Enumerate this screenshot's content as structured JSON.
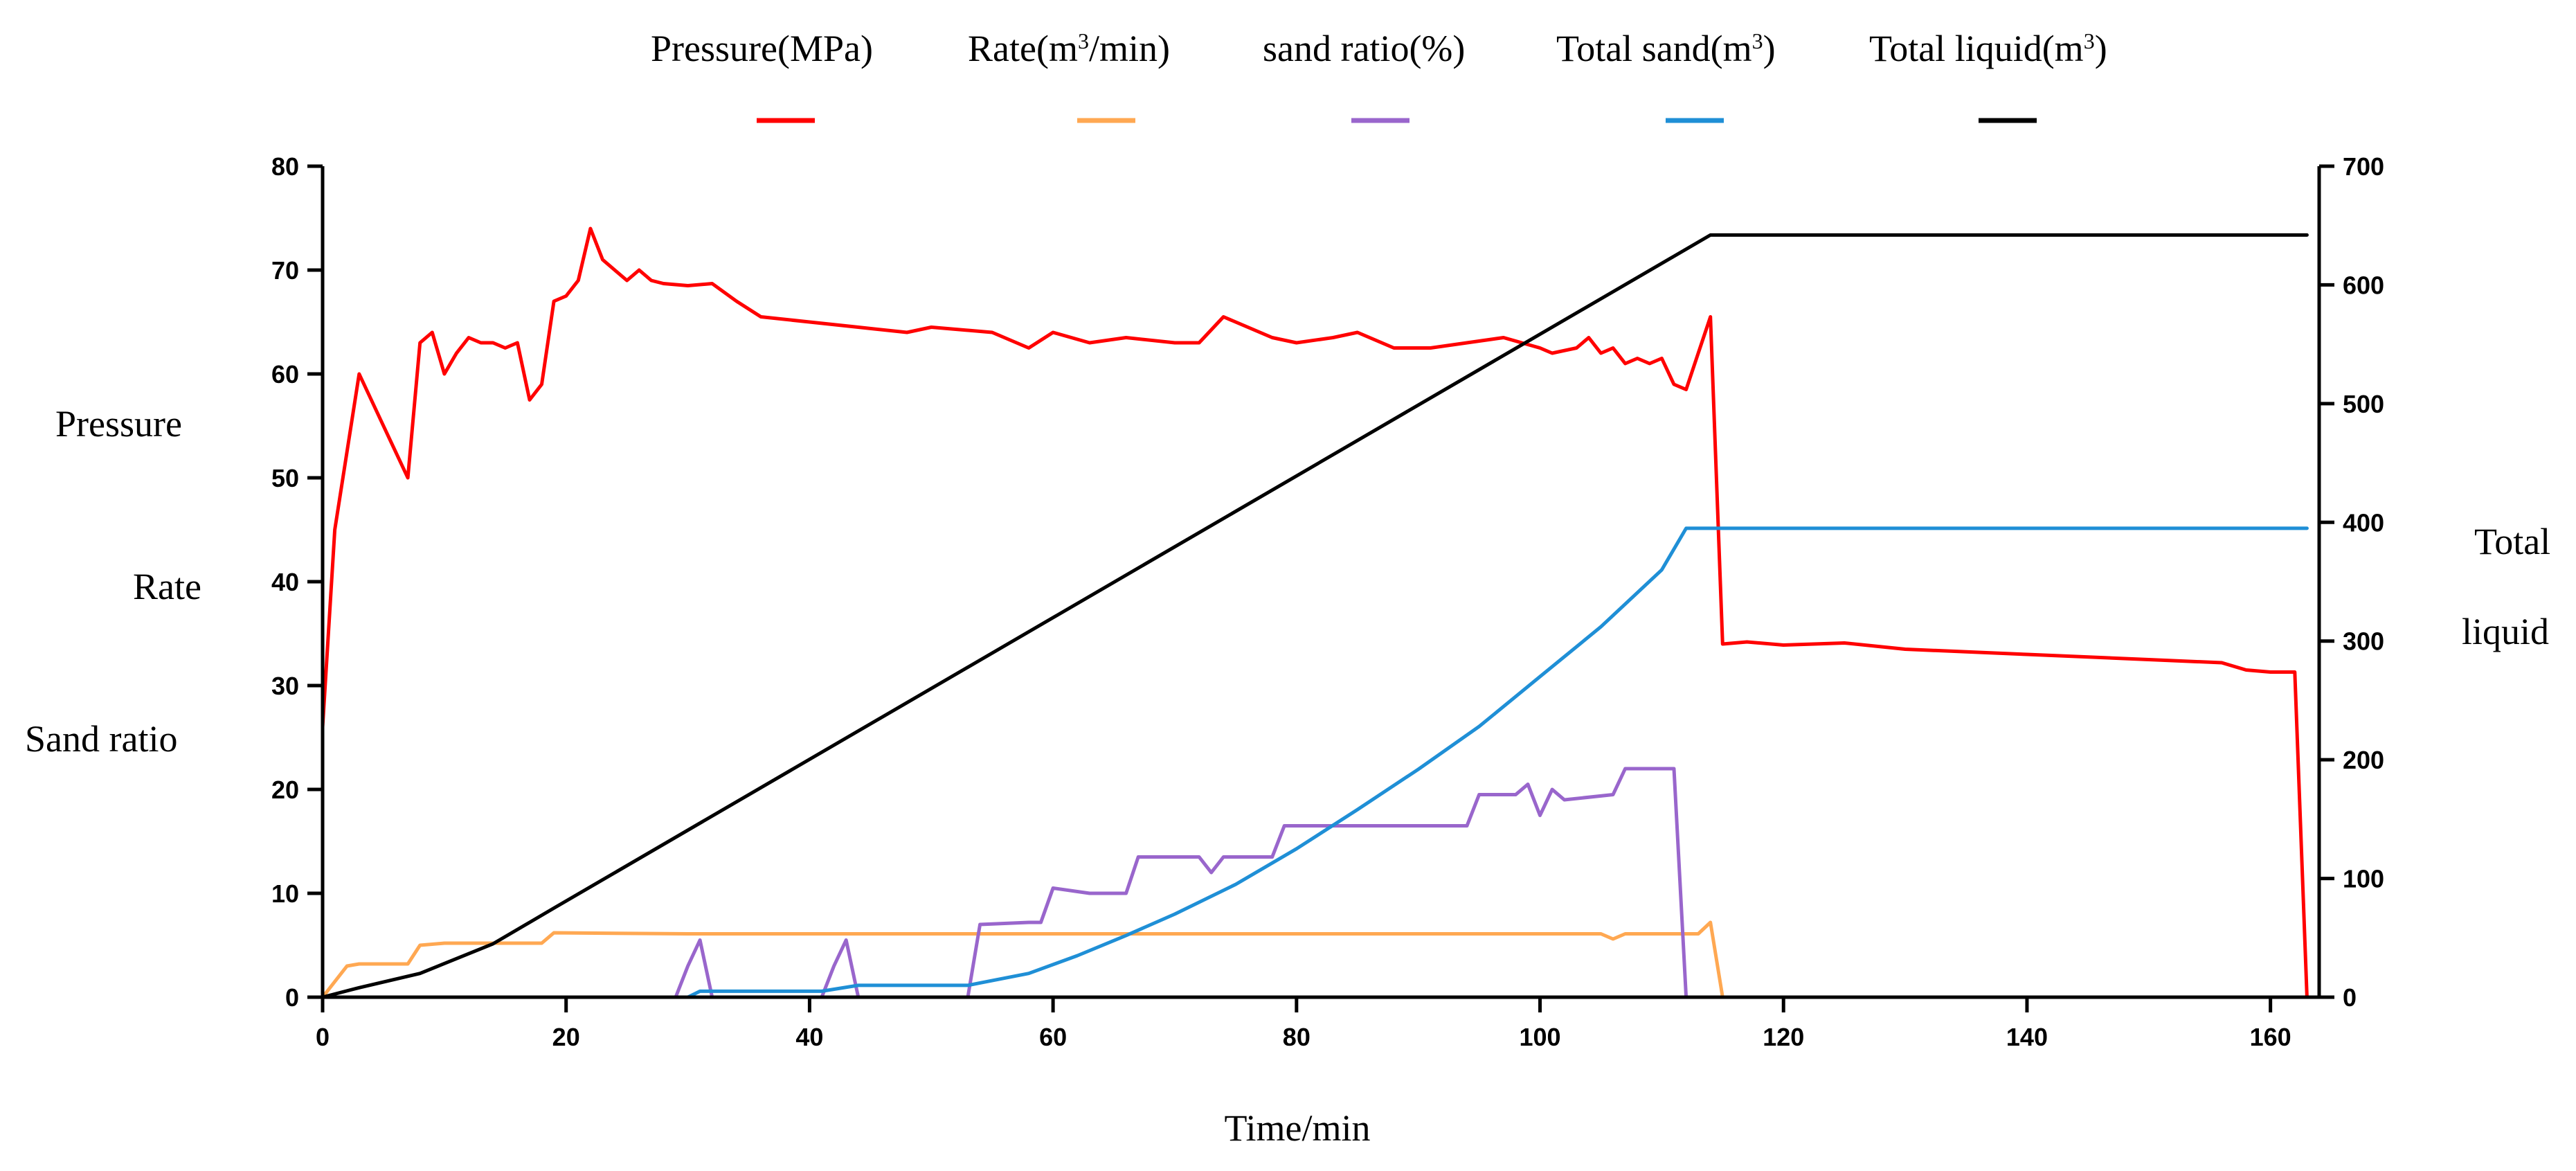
{
  "chart_data": {
    "type": "line",
    "title": "",
    "xlabel": "Time/min",
    "ylabel_left": [
      "Pressure",
      "Rate",
      "Sand ratio"
    ],
    "ylabel_right": [
      "Total",
      "liquid"
    ],
    "xlim": [
      0,
      165
    ],
    "ylim_left": [
      0,
      80
    ],
    "ylim_right": [
      0,
      700
    ],
    "x_ticks": [
      0,
      20,
      40,
      60,
      80,
      100,
      120,
      140,
      160
    ],
    "y_ticks_left": [
      0,
      10,
      20,
      30,
      40,
      50,
      60,
      70,
      80
    ],
    "y_ticks_right": [
      0,
      100,
      200,
      300,
      400,
      500,
      600,
      700
    ],
    "grid": false,
    "legend_position": "top",
    "series": [
      {
        "name": "Pressure(MPa)",
        "legend_parts": [
          "Pressure(MPa)"
        ],
        "color": "#ff0000",
        "axis": "left",
        "points": [
          [
            0,
            26
          ],
          [
            1,
            45
          ],
          [
            3,
            60
          ],
          [
            5,
            55
          ],
          [
            7,
            50
          ],
          [
            8,
            63
          ],
          [
            9,
            64
          ],
          [
            10,
            60
          ],
          [
            11,
            62
          ],
          [
            12,
            63.5
          ],
          [
            13,
            63
          ],
          [
            14,
            63
          ],
          [
            15,
            62.5
          ],
          [
            16,
            63
          ],
          [
            17,
            57.5
          ],
          [
            18,
            59
          ],
          [
            19,
            67
          ],
          [
            20,
            67.5
          ],
          [
            21,
            69
          ],
          [
            22,
            74
          ],
          [
            23,
            71
          ],
          [
            24,
            70
          ],
          [
            25,
            69
          ],
          [
            26,
            70
          ],
          [
            27,
            69
          ],
          [
            28,
            68.7
          ],
          [
            30,
            68.5
          ],
          [
            32,
            68.7
          ],
          [
            34,
            67
          ],
          [
            36,
            65.5
          ],
          [
            40,
            65
          ],
          [
            44,
            64.5
          ],
          [
            48,
            64
          ],
          [
            50,
            64.5
          ],
          [
            55,
            64
          ],
          [
            58,
            62.5
          ],
          [
            60,
            64
          ],
          [
            63,
            63
          ],
          [
            66,
            63.5
          ],
          [
            70,
            63
          ],
          [
            72,
            63
          ],
          [
            74,
            65.5
          ],
          [
            76,
            64.5
          ],
          [
            78,
            63.5
          ],
          [
            80,
            63
          ],
          [
            83,
            63.5
          ],
          [
            85,
            64
          ],
          [
            88,
            62.5
          ],
          [
            91,
            62.5
          ],
          [
            94,
            63
          ],
          [
            97,
            63.5
          ],
          [
            100,
            62.5
          ],
          [
            101,
            62
          ],
          [
            103,
            62.5
          ],
          [
            104,
            63.5
          ],
          [
            105,
            62
          ],
          [
            106,
            62.5
          ],
          [
            107,
            61
          ],
          [
            108,
            61.5
          ],
          [
            109,
            61
          ],
          [
            110,
            61.5
          ],
          [
            111,
            59
          ],
          [
            112,
            58.5
          ],
          [
            113,
            62
          ],
          [
            114,
            65.5
          ],
          [
            115,
            34
          ],
          [
            117,
            34.2
          ],
          [
            120,
            33.9
          ],
          [
            125,
            34.1
          ],
          [
            130,
            33.5
          ],
          [
            140,
            33
          ],
          [
            150,
            32.5
          ],
          [
            156,
            32.2
          ],
          [
            158,
            31.5
          ],
          [
            160,
            31.3
          ],
          [
            162,
            31.3
          ],
          [
            163,
            0
          ]
        ]
      },
      {
        "name": "Rate(m³/min)",
        "legend_parts": [
          "Rate(m",
          "3",
          "/min)"
        ],
        "color": "#ffa852",
        "axis": "left",
        "points": [
          [
            0,
            0
          ],
          [
            1,
            1.5
          ],
          [
            2,
            3
          ],
          [
            3,
            3.2
          ],
          [
            7,
            3.2
          ],
          [
            8,
            5
          ],
          [
            10,
            5.2
          ],
          [
            18,
            5.2
          ],
          [
            19,
            6.2
          ],
          [
            30,
            6.1
          ],
          [
            60,
            6.1
          ],
          [
            90,
            6.1
          ],
          [
            105,
            6.1
          ],
          [
            106,
            5.6
          ],
          [
            107,
            6.1
          ],
          [
            113,
            6.1
          ],
          [
            114,
            7.2
          ],
          [
            115,
            0
          ],
          [
            163,
            0
          ]
        ]
      },
      {
        "name": "sand ratio(%)",
        "legend_parts": [
          "sand ratio(%)"
        ],
        "color": "#9966cc",
        "axis": "left",
        "points": [
          [
            0,
            0
          ],
          [
            29,
            0
          ],
          [
            30,
            3
          ],
          [
            31,
            5.5
          ],
          [
            32,
            0
          ],
          [
            41,
            0
          ],
          [
            42,
            3
          ],
          [
            43,
            5.5
          ],
          [
            44,
            0
          ],
          [
            53,
            0
          ],
          [
            54,
            7
          ],
          [
            58,
            7.2
          ],
          [
            59,
            7.2
          ],
          [
            60,
            10.5
          ],
          [
            63,
            10
          ],
          [
            66,
            10
          ],
          [
            67,
            13.5
          ],
          [
            72,
            13.5
          ],
          [
            73,
            12
          ],
          [
            74,
            13.5
          ],
          [
            78,
            13.5
          ],
          [
            79,
            16.5
          ],
          [
            94,
            16.5
          ],
          [
            95,
            19.5
          ],
          [
            98,
            19.5
          ],
          [
            99,
            20.5
          ],
          [
            100,
            17.5
          ],
          [
            101,
            20
          ],
          [
            102,
            19
          ],
          [
            106,
            19.5
          ],
          [
            107,
            22
          ],
          [
            111,
            22
          ],
          [
            112,
            0
          ],
          [
            163,
            0
          ]
        ]
      },
      {
        "name": "Total sand(m³)",
        "legend_parts": [
          "Total sand(m",
          "3",
          ")"
        ],
        "color": "#1f8fd6",
        "axis": "right",
        "points": [
          [
            0,
            0
          ],
          [
            30,
            0
          ],
          [
            31,
            5
          ],
          [
            41,
            5
          ],
          [
            44,
            10
          ],
          [
            53,
            10
          ],
          [
            54,
            12
          ],
          [
            58,
            20
          ],
          [
            62,
            35
          ],
          [
            66,
            52
          ],
          [
            70,
            70
          ],
          [
            75,
            95
          ],
          [
            80,
            125
          ],
          [
            85,
            158
          ],
          [
            90,
            192
          ],
          [
            95,
            228
          ],
          [
            100,
            270
          ],
          [
            105,
            312
          ],
          [
            110,
            360
          ],
          [
            112,
            395
          ],
          [
            163,
            395
          ]
        ]
      },
      {
        "name": "Total liquid(m³)",
        "legend_parts": [
          "Total liquid(m",
          "3",
          ")"
        ],
        "color": "#000000",
        "axis": "right",
        "points": [
          [
            0,
            0
          ],
          [
            3,
            8
          ],
          [
            8,
            20
          ],
          [
            14,
            45
          ],
          [
            19,
            75
          ],
          [
            114,
            642
          ],
          [
            115,
            642
          ],
          [
            163,
            642
          ]
        ]
      }
    ]
  }
}
